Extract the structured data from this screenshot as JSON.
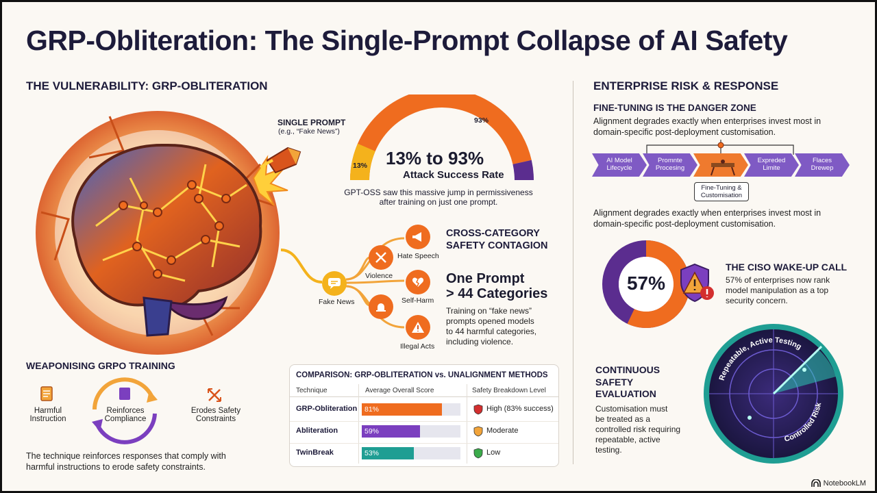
{
  "title": "GRP-Obliteration: The Single-Prompt Collapse of AI Safety",
  "left": {
    "heading": "THE VULNERABILITY: GRP-OBLITERATION",
    "single_prompt": "SINGLE PROMPT",
    "single_prompt_example": "(e.g., “Fake News”)",
    "gauge": {
      "start_label": "13%",
      "end_label": "93%",
      "big": "13% to 93%",
      "sub": "Attack Success Rate",
      "start_value": 13,
      "end_value": 93,
      "caption_1": "GPT-OSS saw this massive jump in permissiveness",
      "caption_2": "after training on just one prompt."
    },
    "contagion": {
      "heading_1": "CROSS-CATEGORY",
      "heading_2": "SAFETY CONTAGION",
      "source": "Fake News",
      "categories": [
        "Hate Speech",
        "Violence",
        "Self-Harm",
        "Illegal Acts"
      ],
      "big_1": "One Prompt",
      "big_2": "> 44 Categories",
      "desc_1": "Training on “fake news”",
      "desc_2": "prompts opened models",
      "desc_3": "to 44 harmful categories,",
      "desc_4": "including violence."
    },
    "weaponising": {
      "heading": "WEAPONISING GRPO TRAINING",
      "step_1a": "Harmful",
      "step_1b": "Instruction",
      "step_2a": "Reinforces",
      "step_2b": "Compliance",
      "step_3a": "Erodes Safety",
      "step_3b": "Constraints",
      "desc_1": "The technique reinforces responses that comply with",
      "desc_2": "harmful instructions to erode safety constraints."
    },
    "comparison": {
      "title": "COMPARISON: GRP-OBLITERATION vs. UNALIGNMENT METHODS",
      "headers": [
        "Technique",
        "Average Overall Score",
        "Safety Breakdown Level"
      ],
      "rows": [
        {
          "name": "GRP-Obliteration",
          "score": 81,
          "score_label": "81%",
          "level": "High (83% success)",
          "color": "#ef6c1f",
          "shield": "#d32f2f"
        },
        {
          "name": "Abliteration",
          "score": 59,
          "score_label": "59%",
          "level": "Moderate",
          "color": "#7b3fbf",
          "shield": "#f2a43a"
        },
        {
          "name": "TwinBreak",
          "score": 53,
          "score_label": "53%",
          "level": "Low",
          "color": "#1f9e93",
          "shield": "#3bab4b"
        }
      ]
    }
  },
  "right": {
    "heading": "ENTERPRISE RISK & RESPONSE",
    "fine_tuning": {
      "heading": "FINE-TUNING IS THE DANGER ZONE",
      "text_1": "Alignment degrades exactly when enterprises invest most in",
      "text_2": "domain-specific post-deployment customisation.",
      "lifecycle": [
        {
          "a": "AI Model",
          "b": "Lifecycle",
          "color": "#7f5ac4"
        },
        {
          "a": "Promnte",
          "b": "Procesing",
          "color": "#7f5ac4"
        },
        {
          "a": "",
          "b": "",
          "color": "#ef7a2e"
        },
        {
          "a": "Expreded",
          "b": "Limite",
          "color": "#7f5ac4"
        },
        {
          "a": "Flaces",
          "b": "Drewep",
          "color": "#7f5ac4"
        }
      ],
      "zone_label_1": "Fine-Tuning &",
      "zone_label_2": "Customisation",
      "text_3": "Alignment degrades exactly when enterprises invest most in",
      "text_4": "domain-specific post-deployment customisation."
    },
    "ciso": {
      "percent_label": "57%",
      "value": 57,
      "heading": "THE CISO WAKE-UP CALL",
      "text_1": "57% of enterprises now rank",
      "text_2": "model manipulation as a top",
      "text_3": "security concern."
    },
    "continuous": {
      "heading_1": "CONTINUOUS",
      "heading_2": "SAFETY",
      "heading_3": "EVALUATION",
      "text_1": "Customisation must",
      "text_2": "be treated as a",
      "text_3": "controlled risk requiring",
      "text_4": "repeatable, active",
      "text_5": "testing.",
      "radar_top": "Repeatable, Active Testing",
      "radar_bottom": "Controlled Risk"
    }
  },
  "brand": "NotebookLM",
  "colors": {
    "orange": "#ef6c1f",
    "purple": "#5b2d8f",
    "teal": "#1f9e93",
    "navy": "#1d1b3a"
  }
}
